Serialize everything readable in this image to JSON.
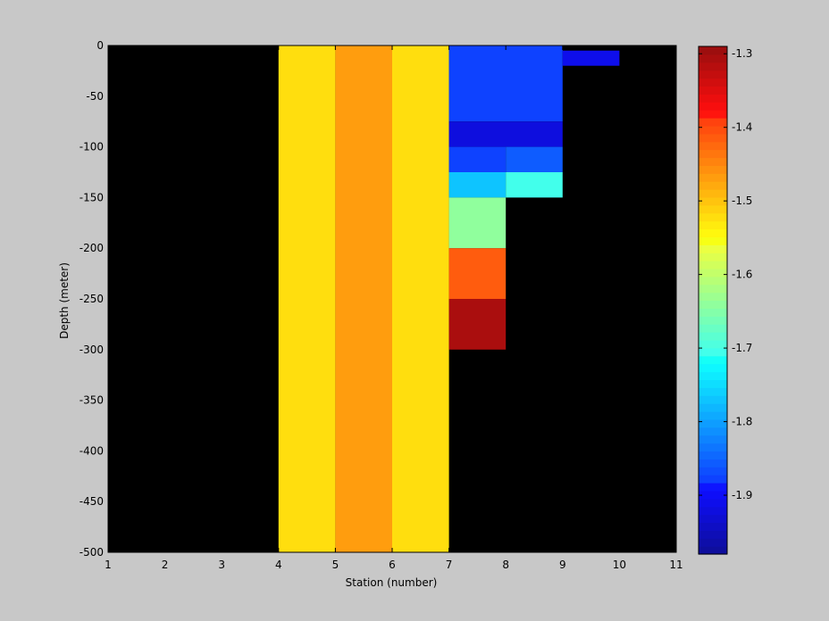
{
  "chart_data": {
    "type": "heatmap",
    "title": "",
    "xlabel": "Station (number)",
    "ylabel": "Depth (meter)",
    "xlim": [
      1,
      11
    ],
    "ylim": [
      -500,
      0
    ],
    "x_ticks": [
      1,
      2,
      3,
      4,
      5,
      6,
      7,
      8,
      9,
      10,
      11
    ],
    "y_ticks": [
      0,
      -50,
      -100,
      -150,
      -200,
      -250,
      -300,
      -350,
      -400,
      -450,
      -500
    ],
    "background_color": "#000000",
    "colorbar": {
      "colormap": "jet",
      "range": [
        -1.98,
        -1.29
      ],
      "ticks": [
        "-1.3",
        "-1.4",
        "-1.5",
        "-1.6",
        "-1.7",
        "-1.8",
        "-1.9"
      ],
      "levels": 64
    },
    "cells": [
      {
        "x0": 4,
        "x1": 5,
        "y0": -500,
        "y1": 0,
        "value": -1.52
      },
      {
        "x0": 5,
        "x1": 6,
        "y0": -500,
        "y1": 0,
        "value": -1.47
      },
      {
        "x0": 6,
        "x1": 7,
        "y0": -500,
        "y1": 0,
        "value": -1.52
      },
      {
        "x0": 7,
        "x1": 9,
        "y0": -75,
        "y1": 0,
        "value": -1.875
      },
      {
        "x0": 9,
        "x1": 10,
        "y0": -20,
        "y1": -5,
        "value": -1.905
      },
      {
        "x0": 7,
        "x1": 9,
        "y0": -100,
        "y1": -75,
        "value": -1.925
      },
      {
        "x0": 7,
        "x1": 8,
        "y0": -125,
        "y1": -100,
        "value": -1.875
      },
      {
        "x0": 8,
        "x1": 9,
        "y0": -125,
        "y1": -100,
        "value": -1.855
      },
      {
        "x0": 7,
        "x1": 8,
        "y0": -150,
        "y1": -125,
        "value": -1.775
      },
      {
        "x0": 8,
        "x1": 9,
        "y0": -150,
        "y1": -125,
        "value": -1.71
      },
      {
        "x0": 7,
        "x1": 8,
        "y0": -200,
        "y1": -150,
        "value": -1.64
      },
      {
        "x0": 7,
        "x1": 8,
        "y0": -250,
        "y1": -200,
        "value": -1.41
      },
      {
        "x0": 7,
        "x1": 8,
        "y0": -300,
        "y1": -250,
        "value": -1.31
      }
    ]
  }
}
